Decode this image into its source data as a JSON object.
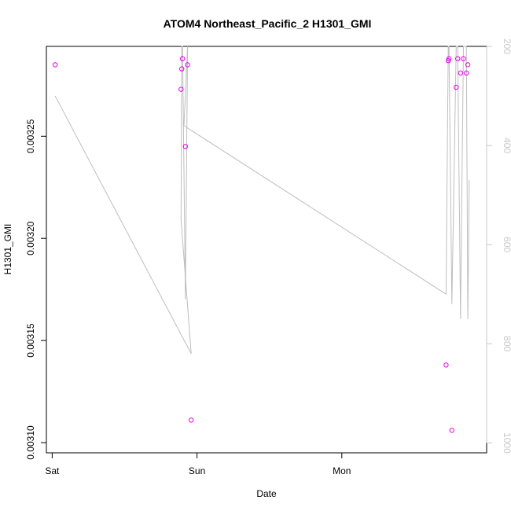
{
  "chart_data": {
    "type": "scatter",
    "title": "ATOM4 Northeast_Pacific_2 H1301_GMI",
    "xlabel": "Date",
    "ylabel": "H1301_GMI",
    "x_ticks": [
      {
        "label": "Sat",
        "value": 0
      },
      {
        "label": "Sun",
        "value": 1
      },
      {
        "label": "Mon",
        "value": 2
      }
    ],
    "xlim": [
      -0.04,
      3.0
    ],
    "ylim": [
      0.003095,
      0.003294
    ],
    "y_ticks": [
      0.0031,
      0.00315,
      0.0032,
      0.00325
    ],
    "y_tick_labels": [
      "0.00310",
      "0.00315",
      "0.00320",
      "0.00325"
    ],
    "y2lim": [
      1020,
      200
    ],
    "y2_ticks": [
      200,
      400,
      600,
      800,
      1000
    ],
    "y2_tick_labels": [
      "200",
      "400",
      "600",
      "800",
      "1000"
    ],
    "point_color": "#e600e6",
    "line_color": "#bebebe",
    "right_axis_color": "#c8c8c8",
    "points": [
      {
        "x": 0.02,
        "y": 0.003285
      },
      {
        "x": 0.89,
        "y": 0.003273
      },
      {
        "x": 0.895,
        "y": 0.003283
      },
      {
        "x": 0.9,
        "y": 0.003288
      },
      {
        "x": 0.92,
        "y": 0.003245
      },
      {
        "x": 0.935,
        "y": 0.003285
      },
      {
        "x": 0.96,
        "y": 0.003111
      },
      {
        "x": 2.72,
        "y": 0.003138
      },
      {
        "x": 2.735,
        "y": 0.003287
      },
      {
        "x": 2.74,
        "y": 0.003288
      },
      {
        "x": 2.76,
        "y": 0.003106
      },
      {
        "x": 2.79,
        "y": 0.003274
      },
      {
        "x": 2.8,
        "y": 0.003288
      },
      {
        "x": 2.82,
        "y": 0.003281
      },
      {
        "x": 2.84,
        "y": 0.003288
      },
      {
        "x": 2.86,
        "y": 0.003281
      },
      {
        "x": 2.87,
        "y": 0.003285
      }
    ],
    "pressure_line": {
      "x": [
        0.02,
        0.96,
        0.89,
        0.895,
        0.9,
        0.92,
        0.935,
        0.91,
        2.72,
        2.735,
        2.74,
        2.76,
        2.79,
        2.8,
        2.82,
        2.84,
        2.86,
        2.87,
        2.88
      ],
      "y": [
        300,
        820,
        550,
        200,
        200,
        710,
        200,
        360,
        700,
        200,
        200,
        720,
        200,
        200,
        750,
        200,
        200,
        750,
        470
      ]
    }
  }
}
